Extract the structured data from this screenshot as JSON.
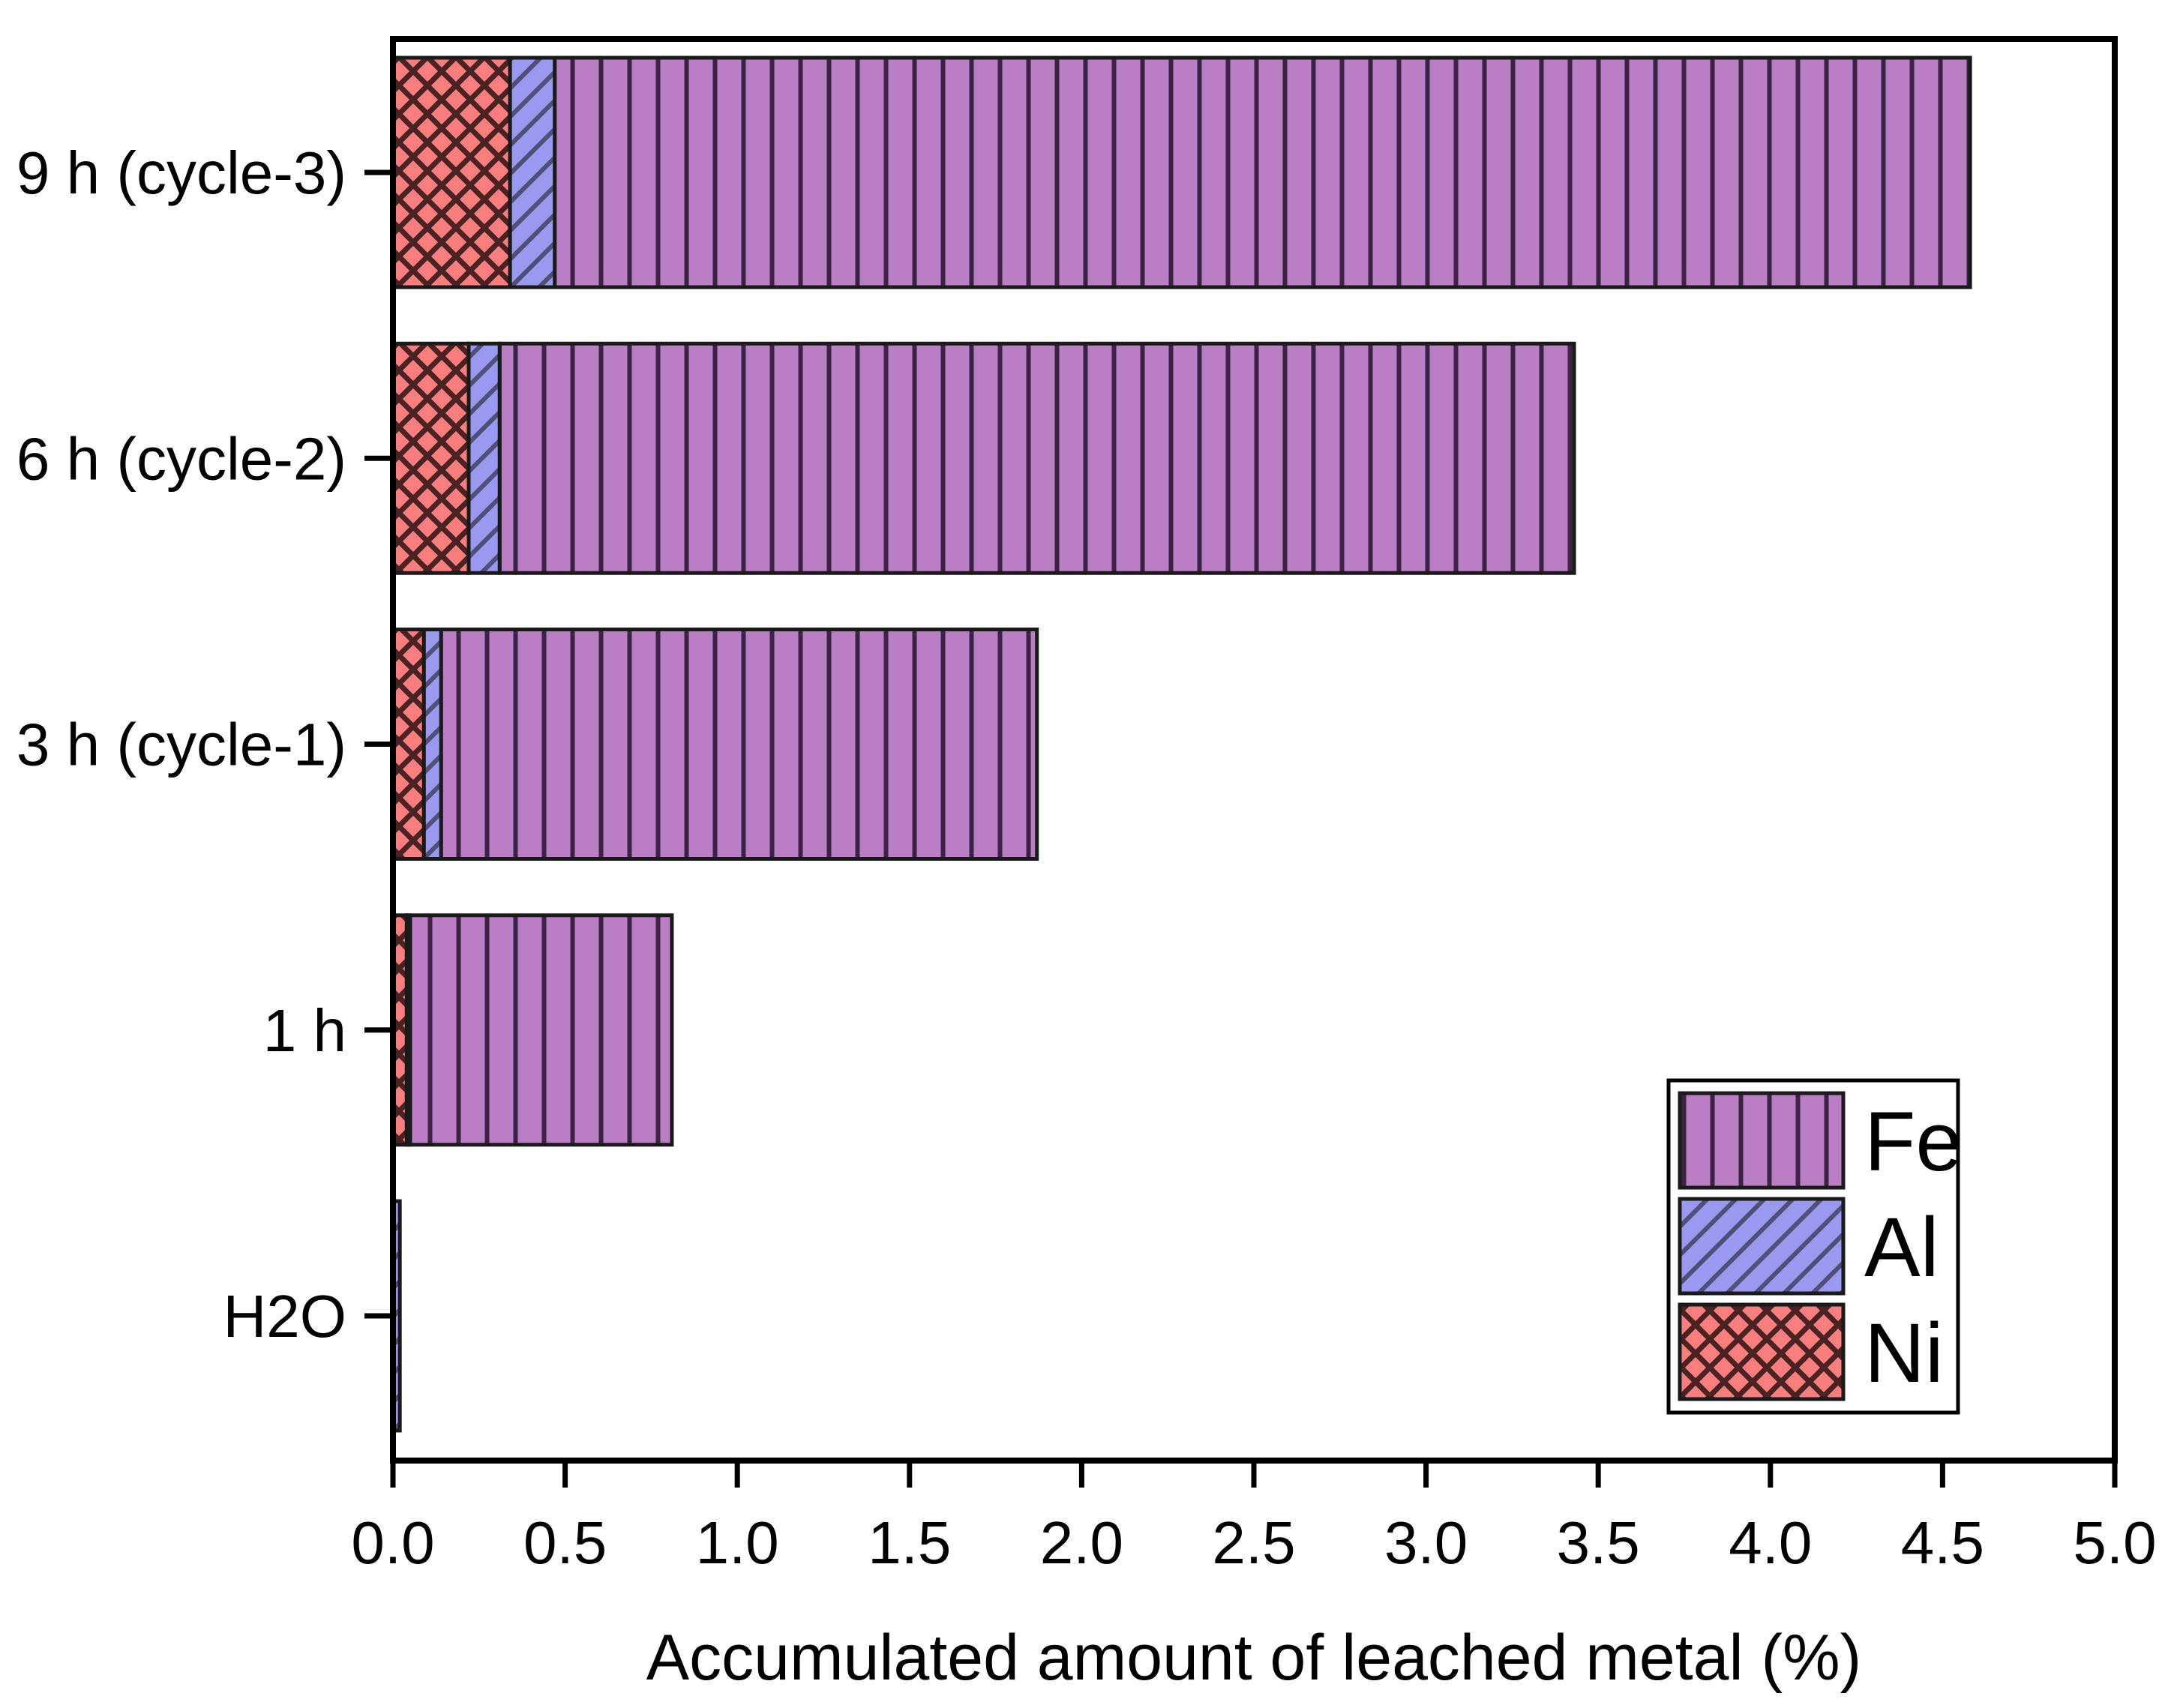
{
  "figure": {
    "background": "#ffffff",
    "axis_color": "#000000",
    "bar_border_color": "#1a1a1a"
  },
  "chart_data": {
    "type": "bar",
    "orientation": "horizontal",
    "stacked": true,
    "title": "",
    "xlabel": "Accumulated amount of leached metal  (%)",
    "ylabel": "",
    "xlim": [
      0,
      5
    ],
    "xticks": [
      "0.0",
      "0.5",
      "1.0",
      "1.5",
      "2.0",
      "2.5",
      "3.0",
      "3.5",
      "4.0",
      "4.5",
      "5.0"
    ],
    "categories": [
      "9 h (cycle-3)",
      "6 h (cycle-2)",
      "3 h (cycle-1)",
      "1 h",
      "H2O"
    ],
    "series": [
      {
        "name": "Ni",
        "fill": "#f97e7e",
        "hatch": "cross",
        "hatch_color": "#4a2222",
        "values": [
          0.34,
          0.22,
          0.09,
          0.04,
          0.0
        ]
      },
      {
        "name": "Al",
        "fill": "#9a99f0",
        "hatch": "diagonal",
        "hatch_color": "#4f4f78",
        "values": [
          0.13,
          0.09,
          0.05,
          0.01,
          0.02
        ]
      },
      {
        "name": "Fe",
        "fill": "#bb7ec4",
        "hatch": "vertical",
        "hatch_color": "#3c2343",
        "values": [
          4.11,
          3.12,
          1.73,
          0.76,
          0.0
        ]
      }
    ],
    "totals": [
      4.58,
      3.43,
      1.87,
      0.81,
      0.02
    ],
    "legend": {
      "position": "lower-right",
      "entries": [
        "Fe",
        "Al",
        "Ni"
      ]
    },
    "grid": false
  }
}
